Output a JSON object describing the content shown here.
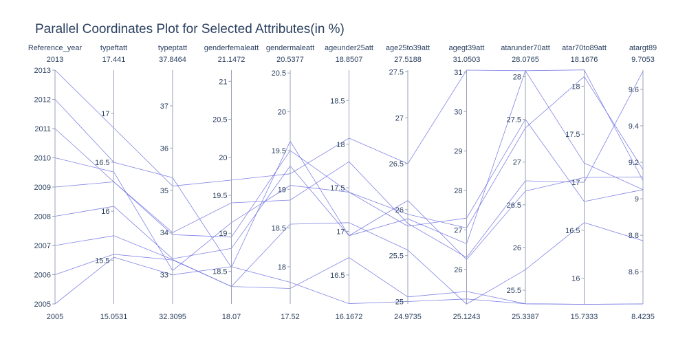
{
  "chart_data": {
    "type": "parallel_coordinates",
    "title": "Parallel Coordinates Plot for Selected Attributes(in %)",
    "line_color": "#6b6ee0",
    "axis_color": "#9aa0b4",
    "text_color": "#2a3f5f",
    "dimensions": [
      {
        "label": "Reference_year",
        "range": [
          2005,
          2013
        ],
        "max_label": "2013",
        "min_label": "2005",
        "ticks": [
          {
            "value": 2005,
            "label": "2005"
          },
          {
            "value": 2006,
            "label": "2006"
          },
          {
            "value": 2007,
            "label": "2007"
          },
          {
            "value": 2008,
            "label": "2008"
          },
          {
            "value": 2009,
            "label": "2009"
          },
          {
            "value": 2010,
            "label": "2010"
          },
          {
            "value": 2011,
            "label": "2011"
          },
          {
            "value": 2012,
            "label": "2012"
          },
          {
            "value": 2013,
            "label": "2013"
          }
        ]
      },
      {
        "label": "typeftatt",
        "range": [
          15.0531,
          17.441
        ],
        "max_label": "17.441",
        "min_label": "15.0531",
        "ticks": [
          {
            "value": 15.5,
            "label": "15.5"
          },
          {
            "value": 16,
            "label": "16"
          },
          {
            "value": 16.5,
            "label": "16.5"
          },
          {
            "value": 17,
            "label": "17"
          }
        ]
      },
      {
        "label": "typeptatt",
        "range": [
          32.3095,
          37.8464
        ],
        "max_label": "37.8464",
        "min_label": "32.3095",
        "ticks": [
          {
            "value": 33,
            "label": "33"
          },
          {
            "value": 34,
            "label": "34"
          },
          {
            "value": 35,
            "label": "35"
          },
          {
            "value": 36,
            "label": "36"
          },
          {
            "value": 37,
            "label": "37"
          }
        ]
      },
      {
        "label": "genderfemaleatt",
        "range": [
          18.07,
          21.1472
        ],
        "max_label": "21.1472",
        "min_label": "18.07",
        "ticks": [
          {
            "value": 18.5,
            "label": "18.5"
          },
          {
            "value": 19,
            "label": "19"
          },
          {
            "value": 19.5,
            "label": "19.5"
          },
          {
            "value": 20,
            "label": "20"
          },
          {
            "value": 20.5,
            "label": "20.5"
          },
          {
            "value": 21,
            "label": "21"
          }
        ]
      },
      {
        "label": "gendermaleatt",
        "range": [
          17.52,
          20.5377
        ],
        "max_label": "20.5377",
        "min_label": "17.52",
        "ticks": [
          {
            "value": 18,
            "label": "18"
          },
          {
            "value": 18.5,
            "label": "18.5"
          },
          {
            "value": 19,
            "label": "19"
          },
          {
            "value": 19.5,
            "label": "19.5"
          },
          {
            "value": 20,
            "label": "20"
          },
          {
            "value": 20.5,
            "label": "20.5"
          }
        ]
      },
      {
        "label": "ageunder25att",
        "range": [
          16.1672,
          18.8507
        ],
        "max_label": "18.8507",
        "min_label": "16.1672",
        "ticks": [
          {
            "value": 16.5,
            "label": "16.5"
          },
          {
            "value": 17,
            "label": "17"
          },
          {
            "value": 17.5,
            "label": "17.5"
          },
          {
            "value": 18,
            "label": "18"
          },
          {
            "value": 18.5,
            "label": "18.5"
          }
        ]
      },
      {
        "label": "age25to39att",
        "range": [
          24.9735,
          27.5188
        ],
        "max_label": "27.5188",
        "min_label": "24.9735",
        "ticks": [
          {
            "value": 25,
            "label": "25"
          },
          {
            "value": 25.5,
            "label": "25.5"
          },
          {
            "value": 26,
            "label": "26"
          },
          {
            "value": 26.5,
            "label": "26.5"
          },
          {
            "value": 27,
            "label": "27"
          },
          {
            "value": 27.5,
            "label": "27.5"
          }
        ]
      },
      {
        "label": "agegt39att",
        "range": [
          25.1243,
          31.0503
        ],
        "max_label": "31.0503",
        "min_label": "25.1243",
        "ticks": [
          {
            "value": 26,
            "label": "26"
          },
          {
            "value": 27,
            "label": "27"
          },
          {
            "value": 28,
            "label": "28"
          },
          {
            "value": 29,
            "label": "29"
          },
          {
            "value": 30,
            "label": "30"
          },
          {
            "value": 31,
            "label": "31"
          }
        ]
      },
      {
        "label": "atarunder70att",
        "range": [
          25.3387,
          28.0765
        ],
        "max_label": "28.0765",
        "min_label": "25.3387",
        "ticks": [
          {
            "value": 25.5,
            "label": "25.5"
          },
          {
            "value": 26,
            "label": "26"
          },
          {
            "value": 26.5,
            "label": "26.5"
          },
          {
            "value": 27,
            "label": "27"
          },
          {
            "value": 27.5,
            "label": "27.5"
          },
          {
            "value": 28,
            "label": "28"
          }
        ]
      },
      {
        "label": "atar70to89att",
        "range": [
          15.7333,
          18.1676
        ],
        "max_label": "18.1676",
        "min_label": "15.7333",
        "ticks": [
          {
            "value": 16,
            "label": "16"
          },
          {
            "value": 16.5,
            "label": "16.5"
          },
          {
            "value": 17,
            "label": "17"
          },
          {
            "value": 17.5,
            "label": "17.5"
          },
          {
            "value": 18,
            "label": "18"
          }
        ]
      },
      {
        "label": "atargt89",
        "range": [
          8.4235,
          9.7053
        ],
        "max_label": "9.7053",
        "min_label": "8.4235",
        "ticks": [
          {
            "value": 8.6,
            "label": "8.6"
          },
          {
            "value": 8.8,
            "label": "8.8"
          },
          {
            "value": 9,
            "label": "9"
          },
          {
            "value": 9.2,
            "label": "9.2"
          },
          {
            "value": 9.4,
            "label": "9.4"
          },
          {
            "value": 9.6,
            "label": "9.6"
          }
        ]
      }
    ],
    "records": [
      [
        2005,
        15.53,
        33.0,
        18.56,
        17.8,
        16.17,
        25.0,
        25.25,
        25.34,
        15.73,
        8.4235
      ],
      [
        2006,
        15.56,
        33.35,
        18.3,
        17.72,
        16.7,
        25.05,
        25.44,
        25.34,
        15.73,
        8.4235
      ],
      [
        2007,
        15.75,
        33.36,
        18.3,
        18.55,
        17.1,
        25.56,
        25.12,
        25.74,
        16.58,
        8.77
      ],
      [
        2008,
        16.05,
        33.38,
        18.8,
        19.3,
        16.95,
        26.1,
        26.25,
        26.66,
        17.05,
        9.12
      ],
      [
        2009,
        16.3,
        33.95,
        18.95,
        19.5,
        17.45,
        25.82,
        27.3,
        27.5,
        16.8,
        9.05
      ],
      [
        2010,
        16.4,
        33.1,
        19.14,
        19.05,
        17.45,
        25.95,
        27.05,
        27.4,
        18.1,
        9.16
      ],
      [
        2011,
        16.3,
        34.0,
        19.4,
        18.86,
        17.8,
        25.85,
        26.3,
        26.78,
        17.0,
        9.7
      ],
      [
        2012,
        16.5,
        35.3,
        18.55,
        19.62,
        16.95,
        25.9,
        26.65,
        28.07,
        18.17,
        9.1
      ],
      [
        2013,
        16.85,
        35.1,
        19.7,
        19.2,
        18.07,
        26.5,
        31.05,
        28.07,
        17.2,
        9.05
      ]
    ]
  }
}
